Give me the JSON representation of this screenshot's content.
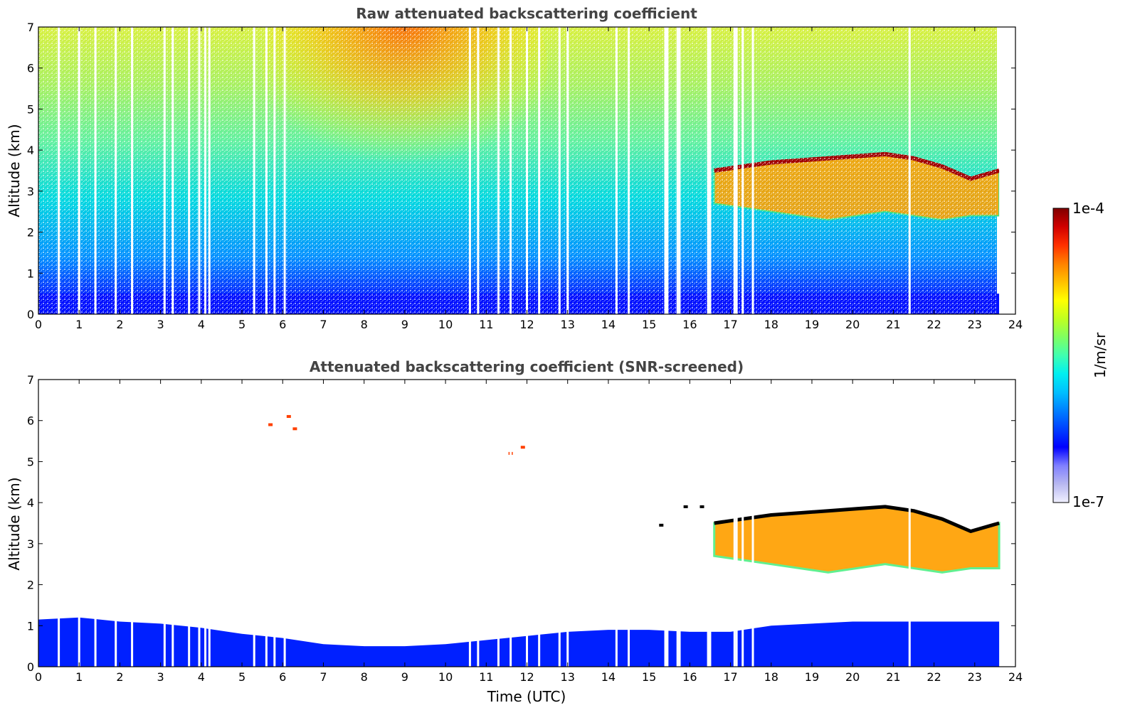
{
  "chart_data": [
    {
      "type": "heatmap",
      "title": "Raw attenuated backscattering coefficient",
      "xlabel": "",
      "ylabel": "Altitude (km)",
      "xlim": [
        0,
        24
      ],
      "ylim": [
        0,
        7
      ],
      "xticks": [
        0,
        1,
        2,
        3,
        4,
        5,
        6,
        7,
        8,
        9,
        10,
        11,
        12,
        13,
        14,
        15,
        16,
        17,
        18,
        19,
        20,
        21,
        22,
        23,
        24
      ],
      "yticks": [
        0,
        1,
        2,
        3,
        4,
        5,
        6,
        7
      ],
      "data_end_time": 23.6,
      "missing_profile_times": [
        0.5,
        1.0,
        1.4,
        1.9,
        2.3,
        3.1,
        3.3,
        3.7,
        3.95,
        4.1,
        4.2,
        5.3,
        5.6,
        5.8,
        6.05,
        10.6,
        10.8,
        11.3,
        11.6,
        12.0,
        12.3,
        12.8,
        13.0,
        14.2,
        14.5,
        15.4,
        15.45,
        15.7,
        15.75,
        16.45,
        16.5,
        17.1,
        17.15,
        17.3,
        17.55,
        21.4
      ],
      "features": [
        {
          "type": "noise_gradient",
          "description_levels": "low near surface, increasing with altitude"
        },
        {
          "type": "solar_noise_high",
          "x_center": 9.0,
          "x_width": 3.5,
          "y_min": 3.5,
          "y_max": 7.0
        },
        {
          "type": "cloud_layer",
          "x_start": 16.6,
          "x_end": 23.6,
          "top_km": [
            3.5,
            3.6,
            3.7,
            3.75,
            3.8,
            3.85,
            3.9,
            3.8,
            3.6,
            3.3,
            3.5
          ],
          "base_km": [
            2.7,
            2.6,
            2.5,
            2.4,
            2.3,
            2.4,
            2.5,
            2.4,
            2.3,
            2.4,
            2.4
          ]
        }
      ]
    },
    {
      "type": "heatmap",
      "title": "Attenuated backscattering coefficient (SNR-screened)",
      "xlabel": "Time (UTC)",
      "ylabel": "Altitude (km)",
      "xlim": [
        0,
        24
      ],
      "ylim": [
        0,
        7
      ],
      "xticks": [
        0,
        1,
        2,
        3,
        4,
        5,
        6,
        7,
        8,
        9,
        10,
        11,
        12,
        13,
        14,
        15,
        16,
        17,
        18,
        19,
        20,
        21,
        22,
        23,
        24
      ],
      "yticks": [
        0,
        1,
        2,
        3,
        4,
        5,
        6,
        7
      ],
      "boundary_layer_top_km": {
        "times": [
          0,
          1,
          2,
          3,
          4,
          5,
          6,
          7,
          8,
          9,
          10,
          11,
          12,
          13,
          14,
          15,
          16,
          17,
          18,
          19,
          20,
          21,
          22,
          23,
          23.6
        ],
        "heights": [
          1.15,
          1.2,
          1.1,
          1.05,
          0.95,
          0.8,
          0.7,
          0.55,
          0.5,
          0.5,
          0.55,
          0.65,
          0.75,
          0.85,
          0.9,
          0.9,
          0.85,
          0.85,
          1.0,
          1.05,
          1.1,
          1.1,
          1.1,
          1.1,
          1.1
        ]
      },
      "cloud_layer": {
        "x_start": 16.6,
        "x_end": 23.6,
        "top_km": [
          3.5,
          3.6,
          3.7,
          3.75,
          3.8,
          3.85,
          3.9,
          3.8,
          3.6,
          3.3,
          3.5
        ],
        "base_km": [
          2.7,
          2.6,
          2.5,
          2.4,
          2.3,
          2.4,
          2.5,
          2.4,
          2.3,
          2.4,
          2.4
        ]
      },
      "isolated_points": [
        {
          "x": 6.15,
          "y": 6.1
        },
        {
          "x": 5.7,
          "y": 5.9
        },
        {
          "x": 6.3,
          "y": 5.8
        },
        {
          "x": 11.9,
          "y": 5.35
        },
        {
          "x": 11.6,
          "y": 5.2
        },
        {
          "x": 15.3,
          "y": 3.45
        },
        {
          "x": 15.9,
          "y": 3.9
        },
        {
          "x": 16.3,
          "y": 3.9
        }
      ]
    }
  ],
  "colorbar": {
    "label": "1/m/sr",
    "max_label": "1e-4",
    "min_label": "1e-7",
    "colormap": [
      "#f0f0ff",
      "#b8b8f0",
      "#8080ff",
      "#0000ff",
      "#0040ff",
      "#0080ff",
      "#00c0ff",
      "#00f0f0",
      "#40ffb0",
      "#80ff60",
      "#c0ff20",
      "#ffff00",
      "#ffc000",
      "#ff8000",
      "#ff3000",
      "#d00000",
      "#800000"
    ]
  }
}
